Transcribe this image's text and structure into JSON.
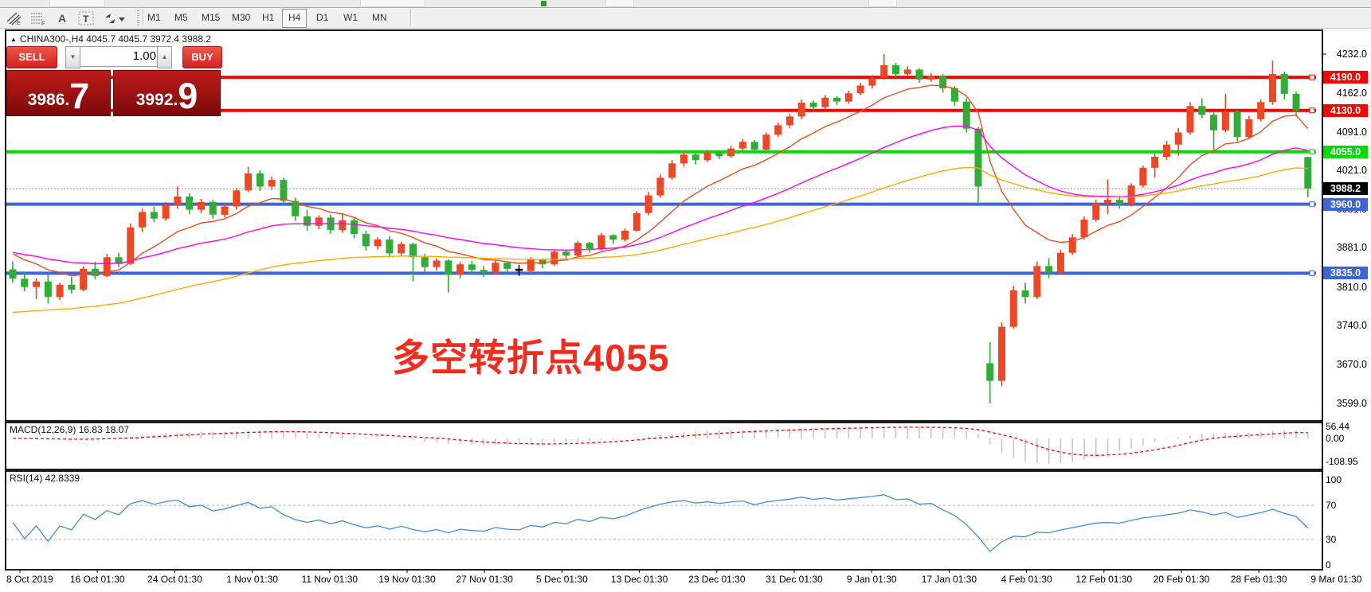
{
  "toolbar": {
    "icons": [
      {
        "name": "equidistant-channel-icon",
        "sub": "E"
      },
      {
        "name": "fibonacci-retracement-icon",
        "sub": "F"
      },
      {
        "name": "text-label-icon",
        "sub": "A"
      },
      {
        "name": "text-box-icon",
        "sub": "T"
      },
      {
        "name": "arrows-tool-icon",
        "sub": ""
      }
    ],
    "timeframes": [
      "M1",
      "M5",
      "M15",
      "M30",
      "H1",
      "H4",
      "D1",
      "W1",
      "MN"
    ],
    "active_timeframe": "H4"
  },
  "trade": {
    "sell_label": "SELL",
    "buy_label": "BUY",
    "volume": "1.00",
    "spin_down": "▼",
    "spin_up": "▲",
    "sell_price_small": "3986.",
    "sell_price_big": "7",
    "buy_price_small": "3992.",
    "buy_price_big": "9"
  },
  "chart": {
    "title": "CHINA300-,H4  4045.7 4045.7 3972.4 3988.2",
    "symbol": "CHINA300-",
    "timeframe": "H4",
    "ohlc_summary": {
      "open": "4045.7",
      "high": "4045.7",
      "low": "3972.4",
      "close": "3988.2"
    },
    "annotation": {
      "text": "多空转折点4055",
      "color": "#f82a1b"
    },
    "current_price": 3988.2
  },
  "price_axis": {
    "plain_labels": [
      {
        "text": "4232.0",
        "price": 4232.0
      },
      {
        "text": "4162.0",
        "price": 4162.0
      },
      {
        "text": "4091.0",
        "price": 4091.0
      },
      {
        "text": "4021.0",
        "price": 4021.0
      },
      {
        "text": "3951.0",
        "price": 3951.0
      },
      {
        "text": "3881.0",
        "price": 3881.0
      },
      {
        "text": "3810.0",
        "price": 3810.0
      },
      {
        "text": "3740.0",
        "price": 3740.0
      },
      {
        "text": "3670.0",
        "price": 3670.0
      },
      {
        "text": "3599.0",
        "price": 3599.0
      }
    ],
    "badges": [
      {
        "text": "4190.0",
        "price": 4190.0,
        "bg": "#fe0000",
        "fg": "#ffffff"
      },
      {
        "text": "4130.0",
        "price": 4130.0,
        "bg": "#fe0000",
        "fg": "#ffffff"
      },
      {
        "text": "4055.0",
        "price": 4055.0,
        "bg": "#00dd00",
        "fg": "#ffffff"
      },
      {
        "text": "3988.2",
        "price": 3988.2,
        "bg": "#000000",
        "fg": "#ffffff"
      },
      {
        "text": "3960.0",
        "price": 3960.0,
        "bg": "#3c64dc",
        "fg": "#ffffff"
      },
      {
        "text": "3835.0",
        "price": 3835.0,
        "bg": "#3c64dc",
        "fg": "#ffffff"
      }
    ]
  },
  "hlines": [
    {
      "price": 4190.0,
      "color": "#fe0000",
      "width": 4
    },
    {
      "price": 4130.0,
      "color": "#fe0000",
      "width": 4
    },
    {
      "price": 4055.0,
      "color": "#00dd00",
      "width": 4
    },
    {
      "price": 3960.0,
      "color": "#3c64dc",
      "width": 4
    },
    {
      "price": 3835.0,
      "color": "#3c64dc",
      "width": 4
    }
  ],
  "macd_panel": {
    "label": "MACD(12,26,9) 16.83 18.07",
    "axis_values": [
      "56.44",
      "0.00",
      "-108.95"
    ],
    "fast": 12,
    "slow": 26,
    "signal": 9,
    "hist_color": "#c4c4c4",
    "signal_color": "#ff0000"
  },
  "rsi_panel": {
    "label": "RSI(14) 42.8339",
    "axis_values": [
      "100",
      "70",
      "30",
      "0"
    ],
    "period": 14,
    "value": 42.8339,
    "color": "#3f8ede",
    "levels": [
      70,
      30
    ]
  },
  "chart_data": {
    "type": "candlestick",
    "symbol": "CHINA300-",
    "timeframe": "H4",
    "up_color": "#ef4623",
    "down_color": "#2fae35",
    "black_doji_index": 43,
    "price_range": [
      3599,
      4232
    ],
    "x_labels": [
      "8 Oct 2019",
      "16 Oct 01:30",
      "24 Oct 01:30",
      "1 Nov 01:30",
      "11 Nov 01:30",
      "19 Nov 01:30",
      "27 Nov 01:30",
      "5 Dec 01:30",
      "13 Dec 01:30",
      "23 Dec 01:30",
      "31 Dec 01:30",
      "9 Jan 01:30",
      "17 Jan 01:30",
      "4 Feb 01:30",
      "12 Feb 01:30",
      "20 Feb 01:30",
      "28 Feb 01:30",
      "9 Mar 01:30"
    ],
    "ohlc": [
      [
        3842,
        3856,
        3818,
        3825
      ],
      [
        3825,
        3838,
        3802,
        3810
      ],
      [
        3810,
        3826,
        3788,
        3820
      ],
      [
        3820,
        3832,
        3780,
        3792
      ],
      [
        3792,
        3818,
        3786,
        3814
      ],
      [
        3814,
        3828,
        3798,
        3805
      ],
      [
        3805,
        3848,
        3802,
        3843
      ],
      [
        3843,
        3856,
        3824,
        3830
      ],
      [
        3830,
        3870,
        3828,
        3864
      ],
      [
        3864,
        3872,
        3846,
        3852
      ],
      [
        3852,
        3925,
        3850,
        3918
      ],
      [
        3918,
        3952,
        3910,
        3946
      ],
      [
        3946,
        3956,
        3928,
        3934
      ],
      [
        3934,
        3964,
        3930,
        3958
      ],
      [
        3958,
        3992,
        3952,
        3974
      ],
      [
        3974,
        3980,
        3942,
        3950
      ],
      [
        3950,
        3970,
        3944,
        3964
      ],
      [
        3964,
        3968,
        3934,
        3941
      ],
      [
        3941,
        3962,
        3936,
        3956
      ],
      [
        3956,
        3990,
        3950,
        3985
      ],
      [
        3985,
        4028,
        3982,
        4016
      ],
      [
        4016,
        4022,
        3984,
        3992
      ],
      [
        3992,
        4010,
        3986,
        4004
      ],
      [
        4004,
        4008,
        3958,
        3966
      ],
      [
        3966,
        3972,
        3930,
        3938
      ],
      [
        3938,
        3950,
        3912,
        3921
      ],
      [
        3921,
        3940,
        3915,
        3936
      ],
      [
        3936,
        3941,
        3906,
        3913
      ],
      [
        3913,
        3944,
        3908,
        3931
      ],
      [
        3931,
        3936,
        3898,
        3906
      ],
      [
        3906,
        3912,
        3876,
        3884
      ],
      [
        3884,
        3900,
        3878,
        3896
      ],
      [
        3896,
        3902,
        3864,
        3871
      ],
      [
        3871,
        3892,
        3866,
        3888
      ],
      [
        3888,
        3890,
        3820,
        3864
      ],
      [
        3864,
        3870,
        3838,
        3846
      ],
      [
        3846,
        3862,
        3840,
        3858
      ],
      [
        3858,
        3860,
        3800,
        3832
      ],
      [
        3832,
        3856,
        3826,
        3851
      ],
      [
        3851,
        3858,
        3834,
        3841
      ],
      [
        3841,
        3848,
        3828,
        3836
      ],
      [
        3836,
        3858,
        3832,
        3854
      ],
      [
        3854,
        3856,
        3836,
        3843
      ],
      [
        3843,
        3850,
        3830,
        3839
      ],
      [
        3839,
        3864,
        3836,
        3860
      ],
      [
        3860,
        3862,
        3844,
        3851
      ],
      [
        3851,
        3878,
        3848,
        3874
      ],
      [
        3874,
        3878,
        3860,
        3867
      ],
      [
        3867,
        3894,
        3864,
        3890
      ],
      [
        3890,
        3892,
        3872,
        3879
      ],
      [
        3879,
        3908,
        3876,
        3904
      ],
      [
        3904,
        3906,
        3888,
        3896
      ],
      [
        3896,
        3916,
        3892,
        3912
      ],
      [
        3912,
        3948,
        3910,
        3944
      ],
      [
        3944,
        3982,
        3940,
        3976
      ],
      [
        3976,
        4014,
        3972,
        4008
      ],
      [
        4008,
        4040,
        4004,
        4034
      ],
      [
        4034,
        4056,
        4028,
        4050
      ],
      [
        4050,
        4054,
        4032,
        4040
      ],
      [
        4040,
        4058,
        4036,
        4053
      ],
      [
        4053,
        4056,
        4042,
        4047
      ],
      [
        4047,
        4066,
        4044,
        4061
      ],
      [
        4061,
        4078,
        4058,
        4073
      ],
      [
        4073,
        4076,
        4054,
        4059
      ],
      [
        4059,
        4090,
        4056,
        4086
      ],
      [
        4086,
        4108,
        4082,
        4103
      ],
      [
        4103,
        4124,
        4098,
        4119
      ],
      [
        4119,
        4150,
        4114,
        4144
      ],
      [
        4144,
        4148,
        4130,
        4136
      ],
      [
        4136,
        4158,
        4132,
        4153
      ],
      [
        4153,
        4156,
        4140,
        4146
      ],
      [
        4146,
        4166,
        4142,
        4161
      ],
      [
        4161,
        4180,
        4158,
        4175
      ],
      [
        4175,
        4194,
        4170,
        4189
      ],
      [
        4189,
        4232,
        4186,
        4212
      ],
      [
        4212,
        4216,
        4190,
        4196
      ],
      [
        4196,
        4210,
        4192,
        4204
      ],
      [
        4204,
        4206,
        4180,
        4186
      ],
      [
        4186,
        4198,
        4182,
        4193
      ],
      [
        4193,
        4196,
        4162,
        4170
      ],
      [
        4170,
        4174,
        4138,
        4146
      ],
      [
        4146,
        4152,
        4090,
        4097
      ],
      [
        4097,
        4100,
        3961,
        3992
      ],
      [
        3672,
        3710,
        3599,
        3640
      ],
      [
        3640,
        3746,
        3630,
        3738
      ],
      [
        3738,
        3812,
        3734,
        3804
      ],
      [
        3804,
        3818,
        3780,
        3792
      ],
      [
        3792,
        3856,
        3788,
        3848
      ],
      [
        3848,
        3862,
        3826,
        3836
      ],
      [
        3836,
        3878,
        3832,
        3872
      ],
      [
        3872,
        3906,
        3868,
        3900
      ],
      [
        3900,
        3938,
        3896,
        3932
      ],
      [
        3932,
        3968,
        3928,
        3962
      ],
      [
        3962,
        4005,
        3942,
        3968
      ],
      [
        3968,
        3976,
        3952,
        3960
      ],
      [
        3960,
        3998,
        3956,
        3994
      ],
      [
        3994,
        4030,
        3990,
        4026
      ],
      [
        4026,
        4052,
        4008,
        4046
      ],
      [
        4046,
        4075,
        4040,
        4068
      ],
      [
        4068,
        4098,
        4048,
        4090
      ],
      [
        4090,
        4145,
        4086,
        4138
      ],
      [
        4138,
        4152,
        4116,
        4122
      ],
      [
        4122,
        4128,
        4058,
        4094
      ],
      [
        4094,
        4160,
        4090,
        4128
      ],
      [
        4128,
        4132,
        4074,
        4082
      ],
      [
        4082,
        4120,
        4078,
        4114
      ],
      [
        4114,
        4150,
        4110,
        4145
      ],
      [
        4145,
        4220,
        4140,
        4196
      ],
      [
        4196,
        4200,
        4150,
        4160
      ],
      [
        4160,
        4164,
        4120,
        4130
      ],
      [
        4045.7,
        4045.7,
        3972.4,
        3988.2
      ]
    ],
    "moving_averages": [
      {
        "name": "ma-fast-red",
        "period": 10,
        "color": "#e94f1d",
        "seed": 3880
      },
      {
        "name": "ma-mid-magenta",
        "period": 30,
        "color": "#ff00ff",
        "seed": 3876
      },
      {
        "name": "ma-slow-orange",
        "period": 60,
        "color": "#ffaa00",
        "seed": 3762
      }
    ]
  }
}
